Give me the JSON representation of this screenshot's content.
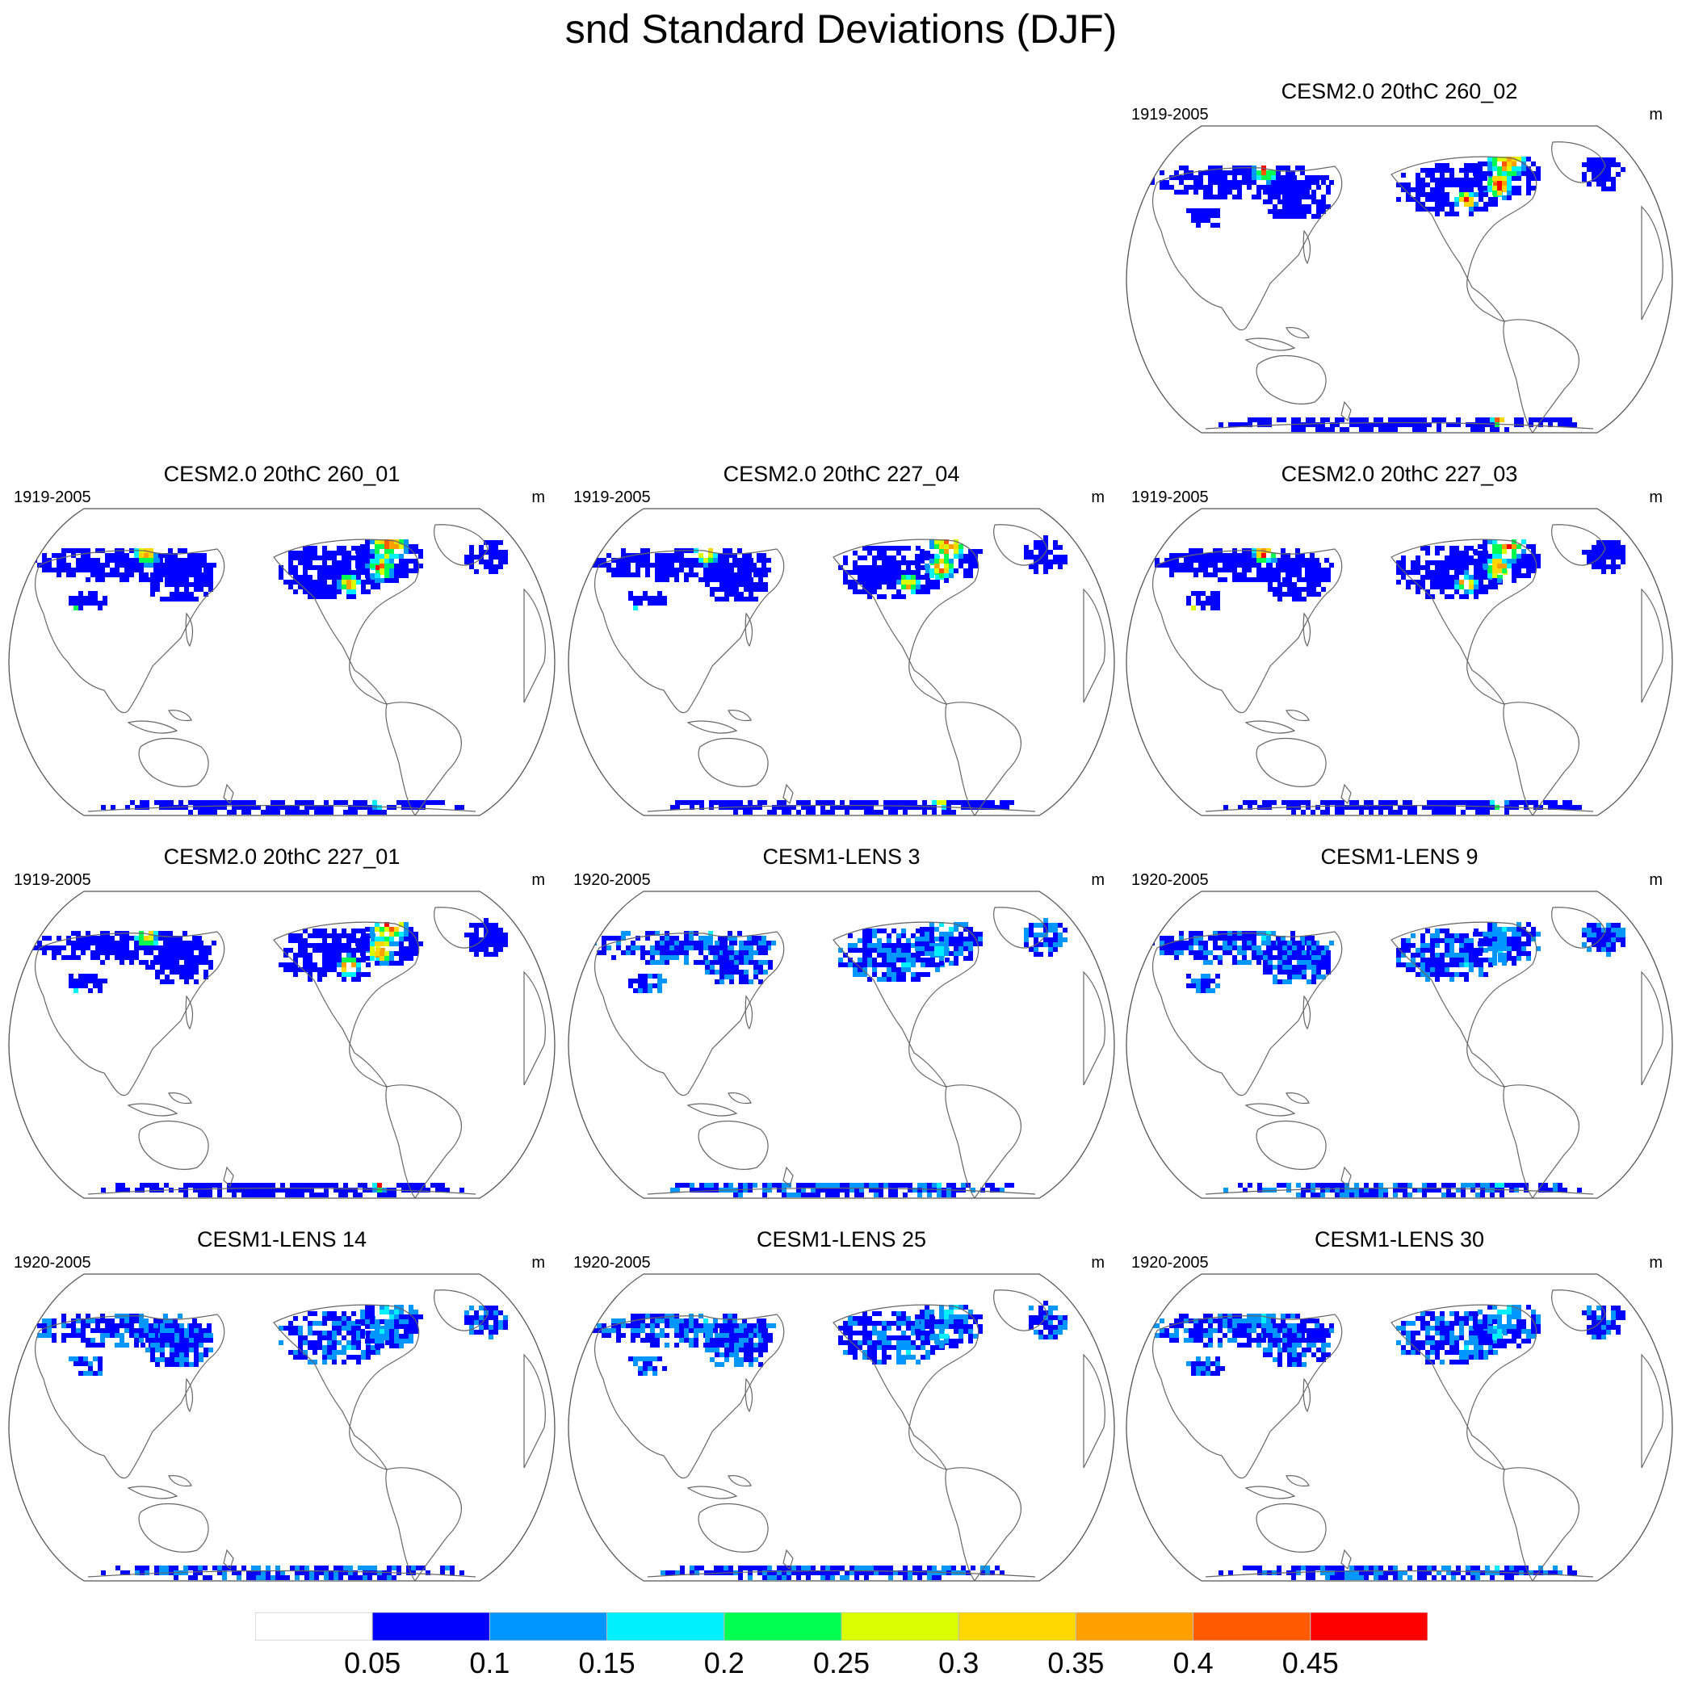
{
  "title": "snd Standard Deviations (DJF)",
  "panels": [
    {
      "name": "CESM2.0 20thC 260_02",
      "period": "1919-2005",
      "units": "m",
      "ensemble": "cesm2",
      "intensity": 1.0
    },
    {
      "name": "CESM2.0 20thC 260_01",
      "period": "1919-2005",
      "units": "m",
      "ensemble": "cesm2",
      "intensity": 0.95
    },
    {
      "name": "CESM2.0 20thC 227_04",
      "period": "1919-2005",
      "units": "m",
      "ensemble": "cesm2",
      "intensity": 0.9
    },
    {
      "name": "CESM2.0 20thC 227_03",
      "period": "1919-2005",
      "units": "m",
      "ensemble": "cesm2",
      "intensity": 0.95
    },
    {
      "name": "CESM2.0 20thC 227_01",
      "period": "1919-2005",
      "units": "m",
      "ensemble": "cesm2",
      "intensity": 1.0
    },
    {
      "name": "CESM1-LENS 3",
      "period": "1920-2005",
      "units": "m",
      "ensemble": "lens",
      "intensity": 0.6
    },
    {
      "name": "CESM1-LENS 9",
      "period": "1920-2005",
      "units": "m",
      "ensemble": "lens",
      "intensity": 0.55
    },
    {
      "name": "CESM1-LENS 14",
      "period": "1920-2005",
      "units": "m",
      "ensemble": "lens",
      "intensity": 0.6
    },
    {
      "name": "CESM1-LENS 25",
      "period": "1920-2005",
      "units": "m",
      "ensemble": "lens",
      "intensity": 0.6
    },
    {
      "name": "CESM1-LENS 30",
      "period": "1920-2005",
      "units": "m",
      "ensemble": "lens",
      "intensity": 0.6
    }
  ],
  "colorbar": {
    "colors": [
      "#ffffff",
      "#0000ff",
      "#0096ff",
      "#00f0ff",
      "#00ff50",
      "#d9ff00",
      "#ffd700",
      "#ffa000",
      "#ff5a00",
      "#ff0000"
    ],
    "labels": [
      "0.05",
      "0.1",
      "0.15",
      "0.2",
      "0.25",
      "0.3",
      "0.35",
      "0.4",
      "0.45"
    ]
  }
}
